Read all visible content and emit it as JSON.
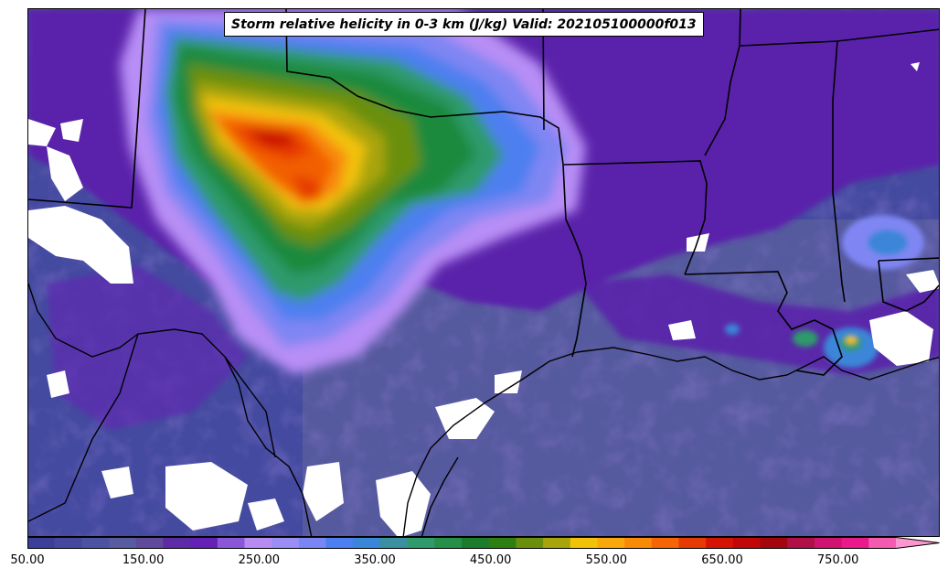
{
  "title": "Storm relative helicity in 0-3 km (J/kg) Valid: 202105100000f013",
  "colorbar": {
    "min": 50,
    "max": 800,
    "step": 25,
    "extend": "max",
    "tick_labels": [
      "50.00",
      "150.00",
      "250.00",
      "350.00",
      "450.00",
      "550.00",
      "650.00",
      "750.00"
    ],
    "tick_values": [
      50,
      150,
      250,
      350,
      450,
      550,
      650,
      750
    ],
    "colors": [
      "#3c3f99",
      "#44489f",
      "#4d53a3",
      "#575ba0",
      "#5f4a9c",
      "#5d2ba6",
      "#6520b5",
      "#8b57d9",
      "#b68cf4",
      "#9a8ef6",
      "#7a86f3",
      "#4d7ff0",
      "#3b86d8",
      "#3a8fa0",
      "#2f9a6c",
      "#269048",
      "#1d7c2c",
      "#2e7f12",
      "#6a8f0e",
      "#a8a40d",
      "#f2c20a",
      "#f8a80a",
      "#f88a08",
      "#f56405",
      "#e63a04",
      "#d41304",
      "#c00808",
      "#a4060e",
      "#b00f48",
      "#d01370",
      "#ea1a8c",
      "#f45bb0"
    ],
    "over_color": "#fb96cf"
  },
  "map": {
    "region": "South-central United States (Texas, Oklahoma, Louisiana, Arkansas, Mississippi)",
    "field": "Storm relative helicity 0-3 km",
    "units": "J/kg"
  }
}
